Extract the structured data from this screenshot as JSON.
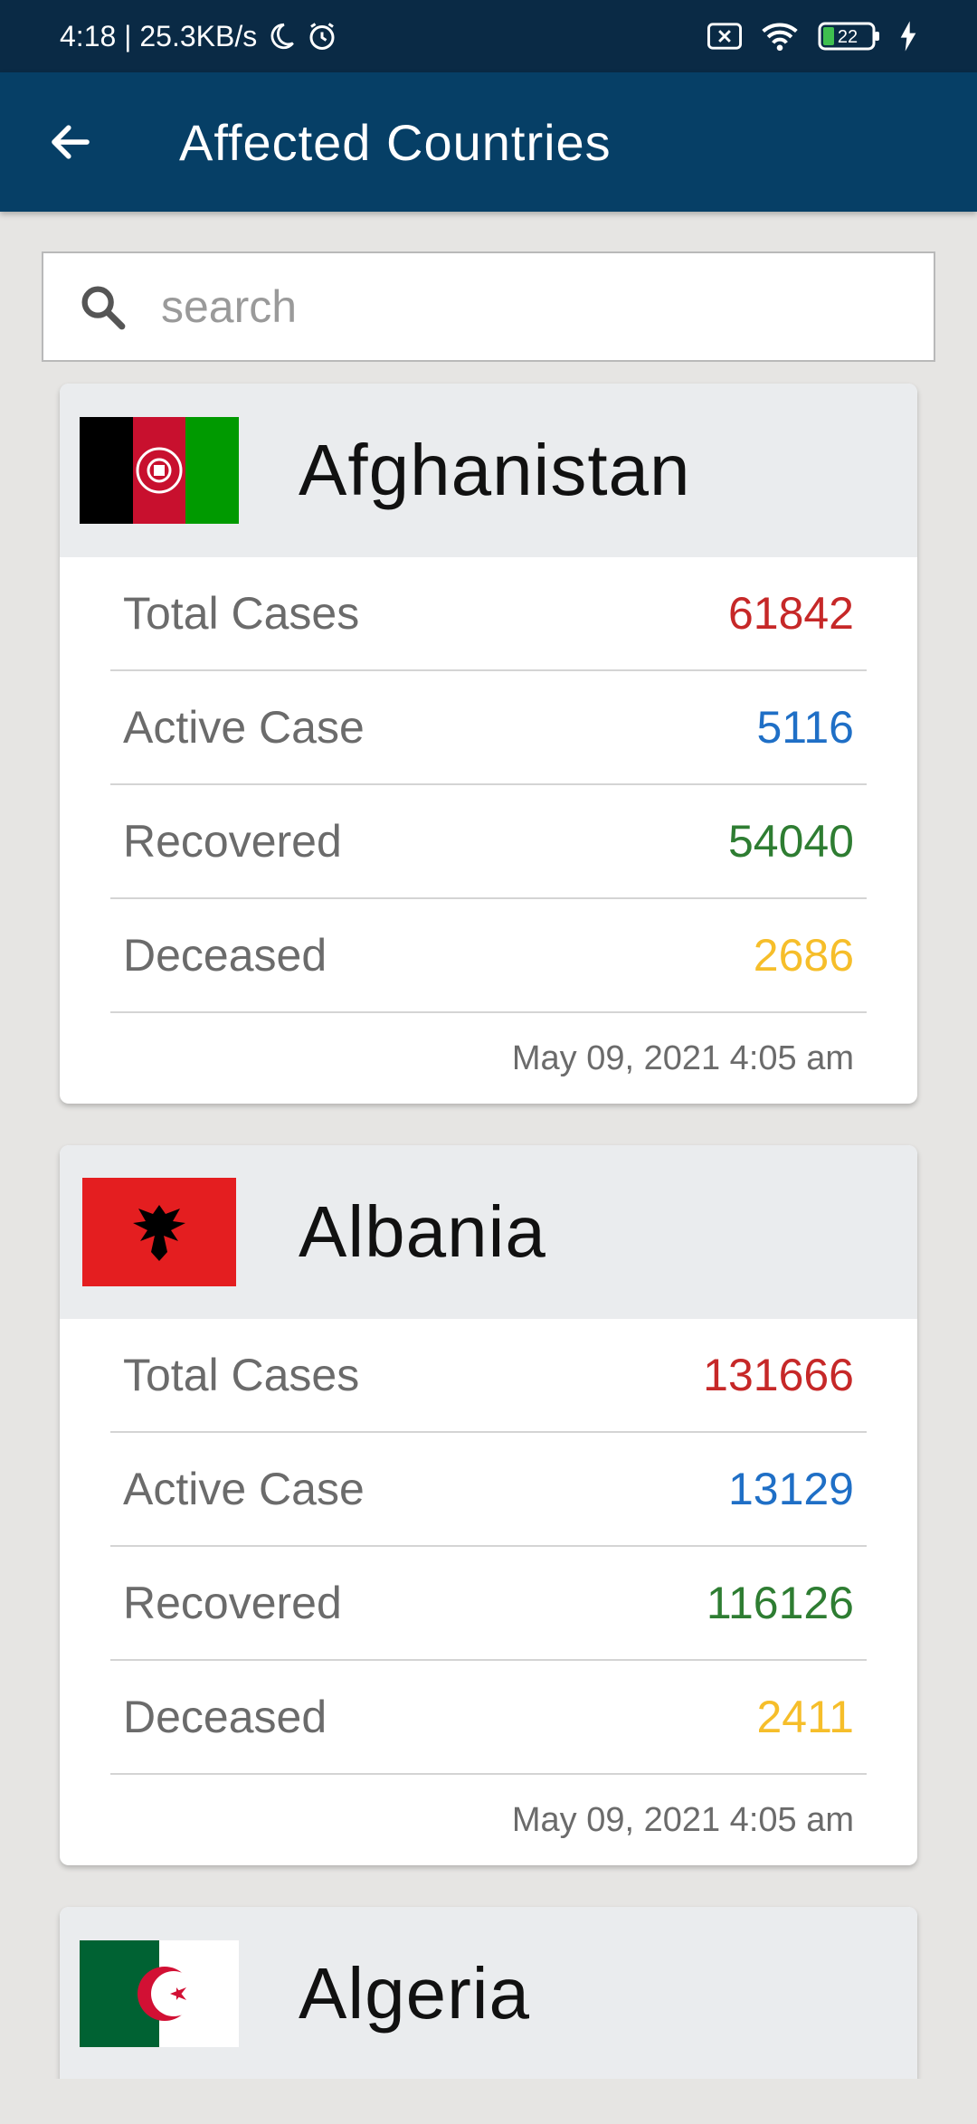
{
  "status_bar": {
    "time_speed": "4:18 | 25.3KB/s",
    "battery": "22"
  },
  "app_bar": {
    "title": "Affected Countries"
  },
  "search": {
    "placeholder": "search"
  },
  "labels": {
    "total": "Total Cases",
    "active": "Active Case",
    "recovered": "Recovered",
    "deceased": "Deceased"
  },
  "countries": [
    {
      "name": "Afghanistan",
      "total": "61842",
      "active": "5116",
      "recovered": "54040",
      "deceased": "2686",
      "updated": "May 09, 2021 4:05 am"
    },
    {
      "name": "Albania",
      "total": "131666",
      "active": "13129",
      "recovered": "116126",
      "deceased": "2411",
      "updated": "May 09, 2021 4:05 am"
    },
    {
      "name": "Algeria"
    }
  ],
  "colors": {
    "status_bar": "#0a2a45",
    "app_bar": "#063f66",
    "total": "#c62828",
    "active": "#1f6fc6",
    "recovered": "#2e7d32",
    "deceased": "#f6be2a"
  }
}
